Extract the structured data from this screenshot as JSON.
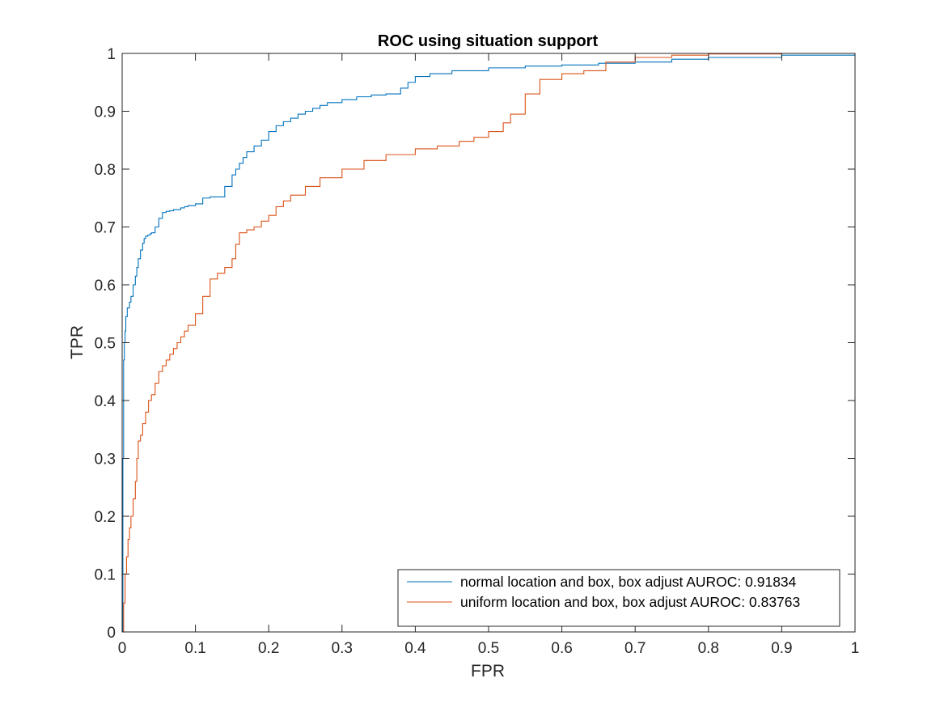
{
  "chart_data": {
    "type": "line",
    "title": "ROC using situation support",
    "xlabel": "FPR",
    "ylabel": "TPR",
    "xlim": [
      0,
      1
    ],
    "ylim": [
      0,
      1
    ],
    "xticks": [
      "0",
      "0.1",
      "0.2",
      "0.3",
      "0.4",
      "0.5",
      "0.6",
      "0.7",
      "0.8",
      "0.9",
      "1"
    ],
    "yticks": [
      "0",
      "0.1",
      "0.2",
      "0.3",
      "0.4",
      "0.5",
      "0.6",
      "0.7",
      "0.8",
      "0.9",
      "1"
    ],
    "grid": false,
    "legend_position": "bottom-right",
    "series": [
      {
        "name": "normal location and box, box adjust AUROC: 0.91834",
        "color": "#0072BD",
        "x": [
          0,
          0.001,
          0.002,
          0.003,
          0.004,
          0.005,
          0.007,
          0.01,
          0.012,
          0.015,
          0.018,
          0.02,
          0.022,
          0.025,
          0.028,
          0.03,
          0.032,
          0.035,
          0.038,
          0.04,
          0.045,
          0.05,
          0.055,
          0.06,
          0.065,
          0.07,
          0.08,
          0.085,
          0.09,
          0.1,
          0.11,
          0.12,
          0.13,
          0.14,
          0.15,
          0.155,
          0.16,
          0.165,
          0.17,
          0.18,
          0.19,
          0.2,
          0.21,
          0.22,
          0.23,
          0.24,
          0.25,
          0.26,
          0.27,
          0.28,
          0.3,
          0.32,
          0.34,
          0.36,
          0.38,
          0.39,
          0.4,
          0.42,
          0.45,
          0.5,
          0.55,
          0.6,
          0.65,
          0.7,
          0.75,
          0.8,
          0.9,
          1
        ],
        "y": [
          0,
          0.3,
          0.47,
          0.5,
          0.52,
          0.545,
          0.56,
          0.57,
          0.58,
          0.6,
          0.615,
          0.63,
          0.645,
          0.66,
          0.672,
          0.68,
          0.684,
          0.686,
          0.688,
          0.69,
          0.7,
          0.715,
          0.725,
          0.727,
          0.728,
          0.73,
          0.733,
          0.735,
          0.737,
          0.74,
          0.75,
          0.752,
          0.752,
          0.77,
          0.79,
          0.8,
          0.81,
          0.82,
          0.83,
          0.84,
          0.85,
          0.865,
          0.875,
          0.882,
          0.888,
          0.895,
          0.9,
          0.905,
          0.91,
          0.915,
          0.92,
          0.925,
          0.928,
          0.93,
          0.94,
          0.95,
          0.96,
          0.965,
          0.97,
          0.975,
          0.978,
          0.98,
          0.983,
          0.985,
          0.99,
          0.993,
          0.997,
          1.0
        ]
      },
      {
        "name": "uniform location and box, box adjust AUROC: 0.83763",
        "color": "#D95319",
        "x": [
          0,
          0.002,
          0.004,
          0.006,
          0.008,
          0.01,
          0.012,
          0.015,
          0.018,
          0.02,
          0.022,
          0.025,
          0.028,
          0.032,
          0.036,
          0.04,
          0.045,
          0.05,
          0.055,
          0.06,
          0.065,
          0.07,
          0.075,
          0.08,
          0.085,
          0.09,
          0.1,
          0.11,
          0.12,
          0.13,
          0.14,
          0.15,
          0.155,
          0.16,
          0.17,
          0.18,
          0.19,
          0.2,
          0.21,
          0.22,
          0.23,
          0.25,
          0.27,
          0.3,
          0.33,
          0.36,
          0.4,
          0.43,
          0.46,
          0.48,
          0.5,
          0.52,
          0.53,
          0.55,
          0.57,
          0.6,
          0.63,
          0.66,
          0.7,
          0.75,
          0.8,
          0.9,
          1
        ],
        "y": [
          0,
          0.05,
          0.1,
          0.13,
          0.16,
          0.18,
          0.2,
          0.23,
          0.26,
          0.3,
          0.33,
          0.34,
          0.36,
          0.38,
          0.4,
          0.41,
          0.43,
          0.45,
          0.46,
          0.47,
          0.48,
          0.49,
          0.5,
          0.51,
          0.52,
          0.53,
          0.55,
          0.58,
          0.61,
          0.62,
          0.63,
          0.645,
          0.67,
          0.69,
          0.695,
          0.7,
          0.71,
          0.72,
          0.735,
          0.745,
          0.755,
          0.77,
          0.785,
          0.8,
          0.815,
          0.825,
          0.835,
          0.84,
          0.848,
          0.855,
          0.865,
          0.88,
          0.895,
          0.93,
          0.955,
          0.965,
          0.97,
          0.985,
          0.993,
          0.997,
          0.999,
          1.0,
          1.0
        ]
      }
    ]
  }
}
